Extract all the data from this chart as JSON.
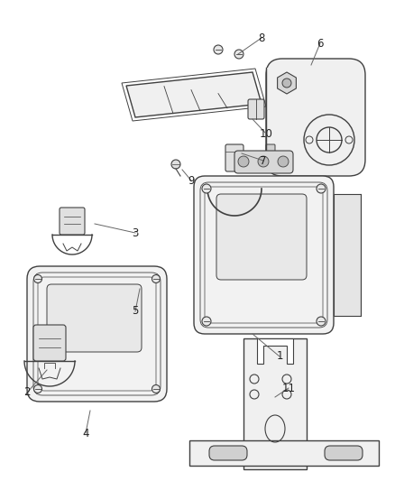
{
  "background_color": "#ffffff",
  "line_color": "#404040",
  "label_color": "#222222",
  "label_fontsize": 8.5,
  "figsize": [
    4.38,
    5.33
  ],
  "dpi": 100
}
